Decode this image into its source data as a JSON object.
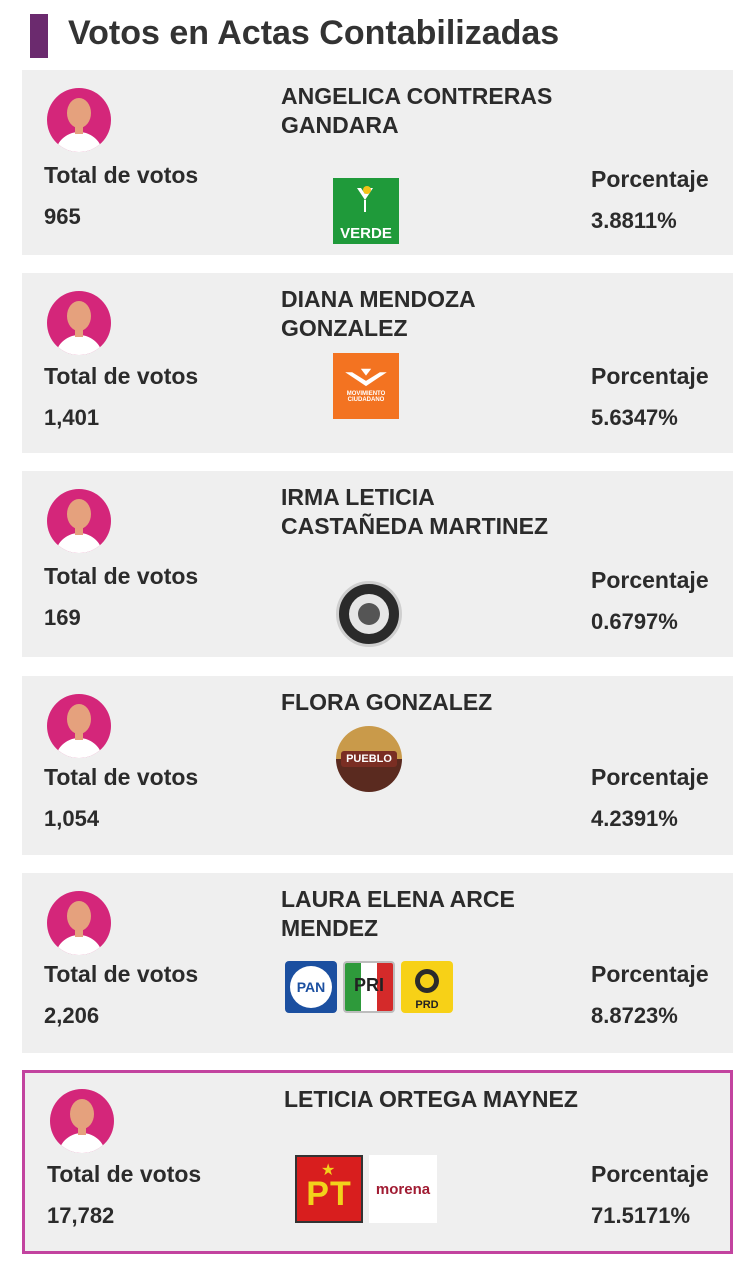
{
  "header": {
    "title": "Votos en Actas Contabilizadas"
  },
  "labels": {
    "total": "Total de votos",
    "percent": "Porcentaje"
  },
  "candidates": [
    {
      "name": "ANGELICA CONTRERAS GANDARA",
      "votes": "965",
      "percent": "3.8811%",
      "parties": [
        "VERDE"
      ]
    },
    {
      "name": "DIANA MENDOZA GONZALEZ",
      "votes": "1,401",
      "percent": "5.6347%",
      "parties": [
        "MOVIMIENTO CIUDADANO"
      ]
    },
    {
      "name": "IRMA LETICIA CASTAÑEDA MARTINEZ",
      "votes": "169",
      "percent": "0.6797%",
      "parties": [
        "independent-seal"
      ]
    },
    {
      "name": "FLORA GONZALEZ",
      "votes": "1,054",
      "percent": "4.2391%",
      "parties": [
        "PUEBLO"
      ]
    },
    {
      "name": "LAURA ELENA ARCE MENDEZ",
      "votes": "2,206",
      "percent": "8.8723%",
      "parties": [
        "PAN",
        "PRI",
        "PRD"
      ]
    },
    {
      "name": "LETICIA ORTEGA MAYNEZ",
      "votes": "17,782",
      "percent": "71.5171%",
      "parties": [
        "PT",
        "morena"
      ],
      "highlighted": true
    }
  ],
  "logo_text": {
    "verde": "VERDE",
    "mc": "MOVIMIENTO CIUDADANO",
    "pueblo": "PUEBLO",
    "pan": "PAN",
    "pri": "PRI",
    "prd": "PRD",
    "pt": "PT",
    "morena": "morena"
  },
  "colors": {
    "accent": "#6b2a6e",
    "highlight_border": "#c2439f",
    "avatar": "#d4267a",
    "card_bg": "#efefef"
  }
}
